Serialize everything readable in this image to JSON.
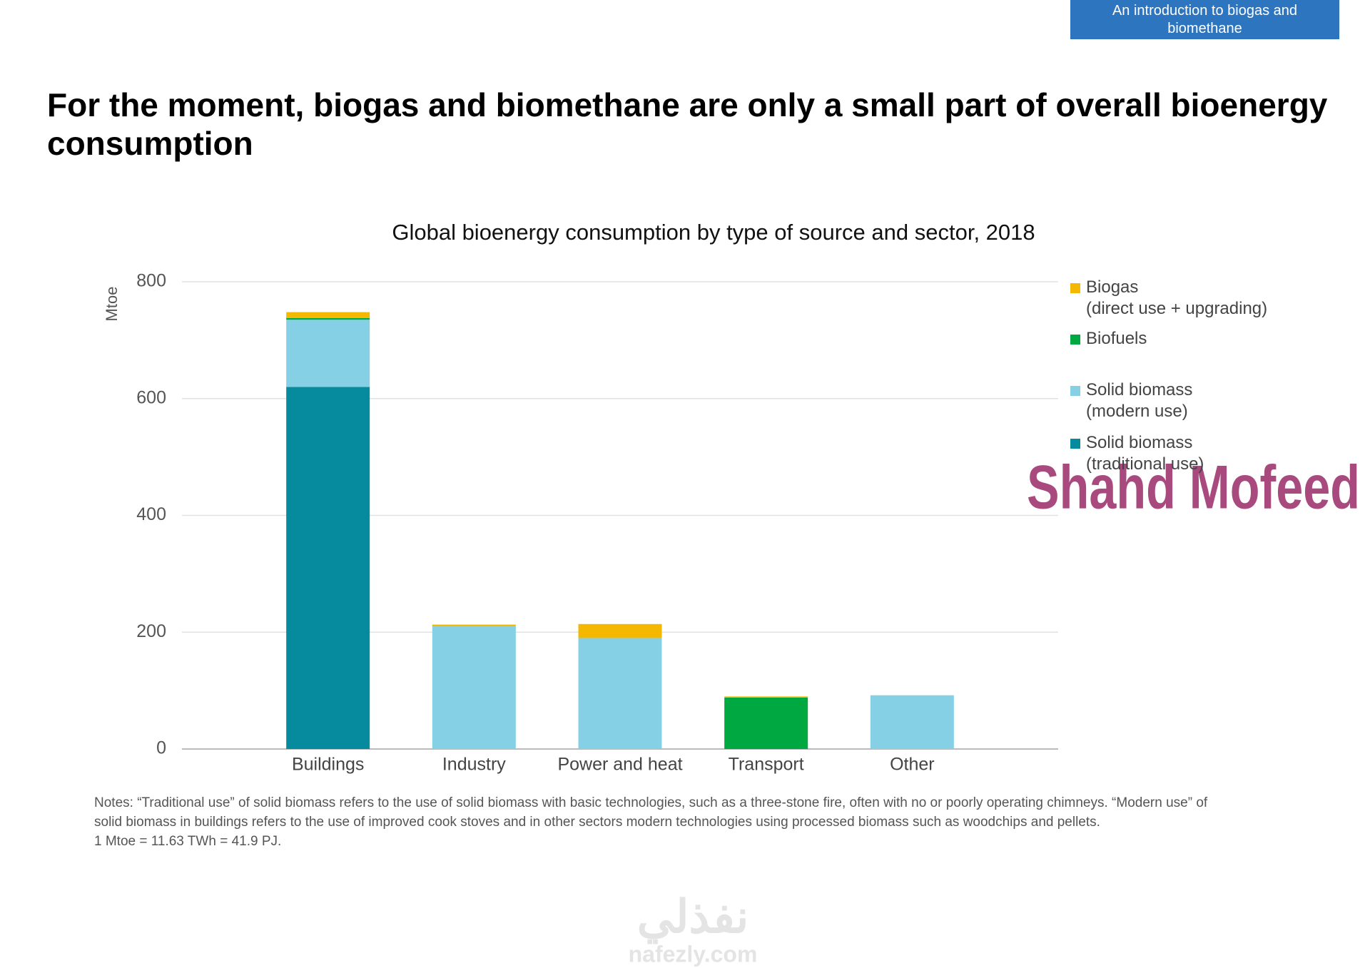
{
  "header": {
    "badge": "An introduction to biogas and biomethane",
    "title": "For the moment, biogas and biomethane are only a small part of overall bioenergy consumption"
  },
  "chart_data": {
    "type": "stacked-bar",
    "title": "Global bioenergy consumption by type of source and sector, 2018",
    "y_label": "Mtoe",
    "categories": [
      "Buildings",
      "Industry",
      "Power and heat",
      "Transport",
      "Other"
    ],
    "series": [
      {
        "name": "Solid biomass\n(traditional use)",
        "color": "#068a9e",
        "values": [
          620,
          0,
          0,
          0,
          0
        ]
      },
      {
        "name": "Solid biomass\n(modern use)",
        "color": "#85d0e4",
        "values": [
          115,
          210,
          190,
          0,
          92
        ]
      },
      {
        "name": "Biofuels",
        "color": "#00a842",
        "values": [
          3,
          0,
          0,
          88,
          0
        ]
      },
      {
        "name": "Biogas\n(direct use + upgrading)",
        "color": "#f5b800",
        "values": [
          10,
          3,
          24,
          2,
          0
        ]
      }
    ],
    "ylim": [
      0,
      800
    ],
    "yticks": [
      0,
      200,
      400,
      600,
      800
    ],
    "grid": true
  },
  "notes": [
    "Notes: “Traditional use” of solid biomass refers to the use of solid biomass with basic technologies, such as a three-stone fire, often with no or poorly operating chimneys. “Modern use” of solid biomass in buildings refers to the use of improved cook stoves and in other sectors modern technologies using processed biomass such as woodchips and pellets.",
    "1 Mtoe = 11.63 TWh = 41.9 PJ."
  ],
  "watermarks": [
    "Shahd Mofeed",
    "نفذلي",
    "nafezly.com"
  ]
}
